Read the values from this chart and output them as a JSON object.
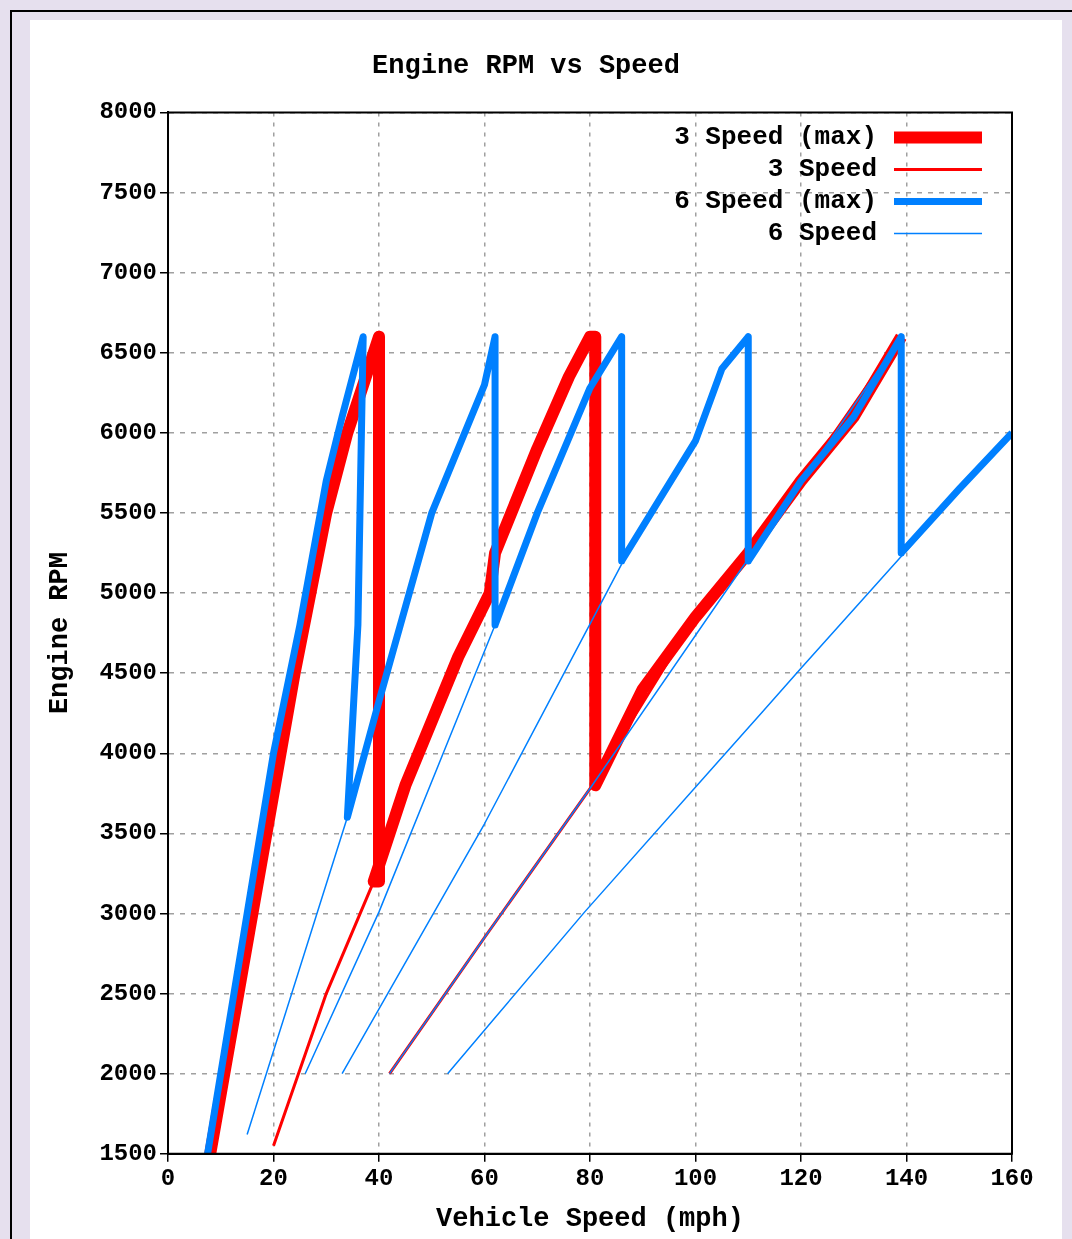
{
  "chart_data": {
    "type": "line",
    "title": "Engine RPM vs Speed",
    "xlabel": "Vehicle Speed (mph)",
    "ylabel": "Engine RPM",
    "xlim": [
      0,
      160
    ],
    "xticks": [
      0,
      20,
      40,
      60,
      80,
      100,
      120,
      140,
      160
    ],
    "ylim": [
      1500,
      8000
    ],
    "yticks": [
      1500,
      2000,
      2500,
      3000,
      3500,
      4000,
      4500,
      5000,
      5500,
      6000,
      6500,
      7000,
      7500,
      8000
    ],
    "grid": true,
    "legend": "top right",
    "marker": "none",
    "line_style": "solid",
    "series": [
      {
        "name": "3 Speed (max)",
        "color": "#ff0000",
        "x": [
          8,
          16,
          24,
          30,
          34,
          37,
          40,
          40,
          39,
          45,
          50,
          55,
          61,
          62,
          70,
          76,
          80,
          81,
          81,
          90,
          100,
          110,
          120,
          130,
          139
        ],
        "values": [
          1500,
          3000,
          4500,
          5500,
          6000,
          6300,
          6600,
          3200,
          3200,
          3800,
          4200,
          4600,
          5000,
          5250,
          5900,
          6350,
          6600,
          6600,
          3800,
          4400,
          4850,
          5250,
          5700,
          6100,
          6600
        ]
      },
      {
        "name": "3 Speed",
        "color": "#ff0000",
        "x": [
          20,
          30,
          39,
          null,
          42,
          60,
          80,
          100,
          120,
          139
        ],
        "values": [
          1550,
          2500,
          3200,
          null,
          2000,
          2850,
          3780,
          4850,
          5700,
          6600
        ]
      },
      {
        "name": "6 Speed (max)",
        "color": "#0080ff",
        "x": [
          7.5,
          15,
          20,
          25,
          30,
          33,
          37,
          36,
          34,
          40,
          50,
          60,
          62,
          62,
          70,
          80,
          86,
          86,
          100,
          105,
          110,
          110,
          120,
          130,
          139,
          139,
          150,
          160
        ],
        "values": [
          1500,
          3000,
          4000,
          4800,
          5700,
          6100,
          6600,
          4800,
          3600,
          4325,
          5500,
          6300,
          6600,
          4800,
          5500,
          6280,
          6600,
          5200,
          5950,
          6400,
          6600,
          5200,
          5700,
          6100,
          6600,
          5250,
          5650,
          6000
        ]
      },
      {
        "name": "6 Speed",
        "color": "#0080ff",
        "x": [
          15,
          34,
          null,
          26,
          40,
          62,
          null,
          33,
          60,
          86,
          null,
          42,
          60,
          80,
          139,
          null,
          53,
          79,
          120,
          160
        ],
        "values": [
          1620,
          3600,
          null,
          2000,
          3010,
          4800,
          null,
          2000,
          3560,
          5180,
          null,
          2000,
          2850,
          3780,
          6600,
          null,
          2000,
          3010,
          4530,
          6000
        ]
      }
    ]
  }
}
